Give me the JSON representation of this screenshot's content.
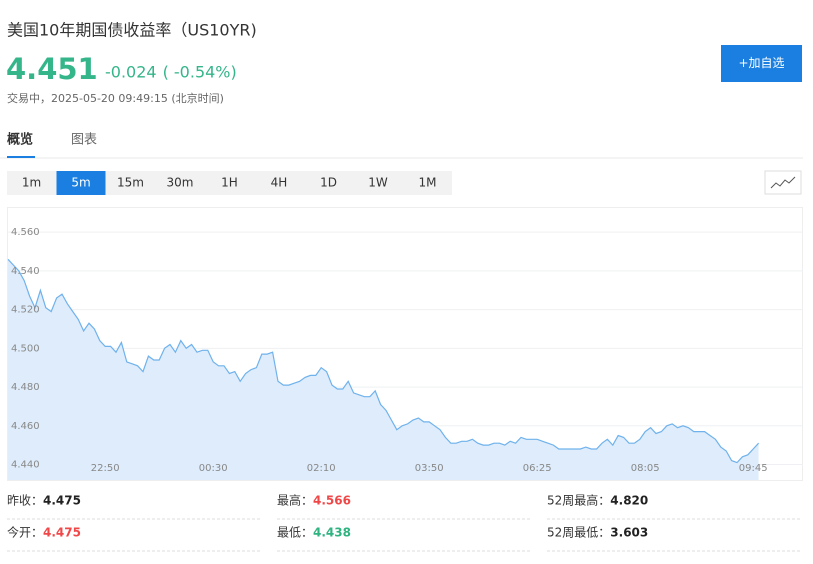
{
  "header": {
    "title": "美国10年期国债收益率（US10YR)",
    "price": "4.451",
    "change": "-0.024",
    "change_pct": "( -0.54%)",
    "status": "交易中，2025-05-20 09:49:15 (北京时间)",
    "button": "+加自选"
  },
  "tabs": [
    "概览",
    "图表"
  ],
  "intervals": [
    "1m",
    "5m",
    "15m",
    "30m",
    "1H",
    "4H",
    "1D",
    "1W",
    "1M"
  ],
  "chart_data": {
    "type": "line",
    "categories": [
      null,
      null,
      null,
      null,
      null,
      null,
      null,
      null,
      null,
      null,
      null,
      null,
      null,
      null,
      null,
      null,
      null,
      null,
      "22:50",
      null,
      null,
      null,
      null,
      null,
      null,
      null,
      null,
      null,
      null,
      null,
      null,
      null,
      null,
      null,
      null,
      null,
      null,
      null,
      "00:30",
      null,
      null,
      null,
      null,
      null,
      null,
      null,
      null,
      null,
      null,
      null,
      null,
      null,
      null,
      null,
      null,
      null,
      null,
      null,
      "02:10",
      null,
      null,
      null,
      null,
      null,
      null,
      null,
      null,
      null,
      null,
      null,
      null,
      null,
      null,
      null,
      null,
      null,
      null,
      null,
      "03:50",
      null,
      null,
      null,
      null,
      null,
      null,
      null,
      null,
      null,
      null,
      null,
      null,
      null,
      null,
      null,
      null,
      null,
      null,
      null,
      "06:25",
      null,
      null,
      null,
      null,
      null,
      null,
      null,
      null,
      null,
      null,
      null,
      null,
      null,
      null,
      null,
      null,
      null,
      null,
      null,
      "08:05",
      null,
      null,
      null,
      null,
      null,
      null,
      null,
      null,
      null,
      null,
      null,
      null,
      null,
      null,
      null,
      null,
      null,
      null,
      null,
      "09:45",
      null
    ],
    "series": [
      {
        "color": "#6fb2ec",
        "values": [
          4.546,
          4.543,
          4.54,
          4.535,
          4.527,
          4.521,
          4.53,
          4.521,
          4.519,
          4.526,
          4.528,
          4.523,
          4.519,
          4.515,
          4.509,
          4.513,
          4.51,
          4.504,
          4.501,
          4.501,
          4.498,
          4.503,
          4.493,
          4.492,
          4.491,
          4.488,
          4.496,
          4.494,
          4.494,
          4.5,
          4.502,
          4.498,
          4.504,
          4.5,
          4.502,
          4.498,
          4.499,
          4.499,
          4.493,
          4.491,
          4.491,
          4.487,
          4.488,
          4.483,
          4.487,
          4.489,
          4.49,
          4.497,
          4.497,
          4.498,
          4.483,
          4.481,
          4.481,
          4.482,
          4.483,
          4.485,
          4.486,
          4.486,
          4.49,
          4.488,
          4.481,
          4.479,
          4.479,
          4.483,
          4.477,
          4.476,
          4.475,
          4.475,
          4.478,
          4.471,
          4.468,
          4.463,
          4.458,
          4.46,
          4.461,
          4.463,
          4.464,
          4.462,
          4.462,
          4.46,
          4.458,
          4.454,
          4.451,
          4.451,
          4.452,
          4.452,
          4.453,
          4.451,
          4.45,
          4.45,
          4.451,
          4.451,
          4.45,
          4.452,
          4.451,
          4.454,
          4.453,
          4.453,
          4.453,
          4.452,
          4.451,
          4.45,
          4.448,
          4.448,
          4.448,
          4.448,
          4.448,
          4.449,
          4.448,
          4.448,
          4.451,
          4.453,
          4.45,
          4.455,
          4.454,
          4.451,
          4.451,
          4.453,
          4.457,
          4.459,
          4.456,
          4.457,
          4.46,
          4.461,
          4.459,
          4.46,
          4.459,
          4.457,
          4.457,
          4.457,
          4.455,
          4.453,
          4.449,
          4.447,
          4.442,
          4.441,
          4.444,
          4.445,
          4.448,
          4.451
        ]
      }
    ],
    "ylim": [
      4.432,
      4.573
    ],
    "yticks": [
      {
        "value": 4.44,
        "label": "4.440"
      },
      {
        "value": 4.46,
        "label": "4.460"
      },
      {
        "value": 4.48,
        "label": "4.480"
      },
      {
        "value": 4.5,
        "label": "4.500"
      },
      {
        "value": 4.52,
        "label": "4.520"
      },
      {
        "value": 4.54,
        "label": "4.540"
      },
      {
        "value": 4.56,
        "label": "4.560"
      }
    ],
    "grid": true
  },
  "stats": [
    [
      {
        "label": "昨收：",
        "value": "4.475",
        "tone": "plain"
      },
      {
        "label": "最高：",
        "value": "4.566",
        "tone": "up"
      },
      {
        "label": "52周最高：",
        "value": "4.820",
        "tone": "plain"
      }
    ],
    [
      {
        "label": "今开：",
        "value": "4.475",
        "tone": "up"
      },
      {
        "label": "最低：",
        "value": "4.438",
        "tone": "down"
      },
      {
        "label": "52周最低：",
        "value": "3.603",
        "tone": "plain"
      }
    ]
  ]
}
